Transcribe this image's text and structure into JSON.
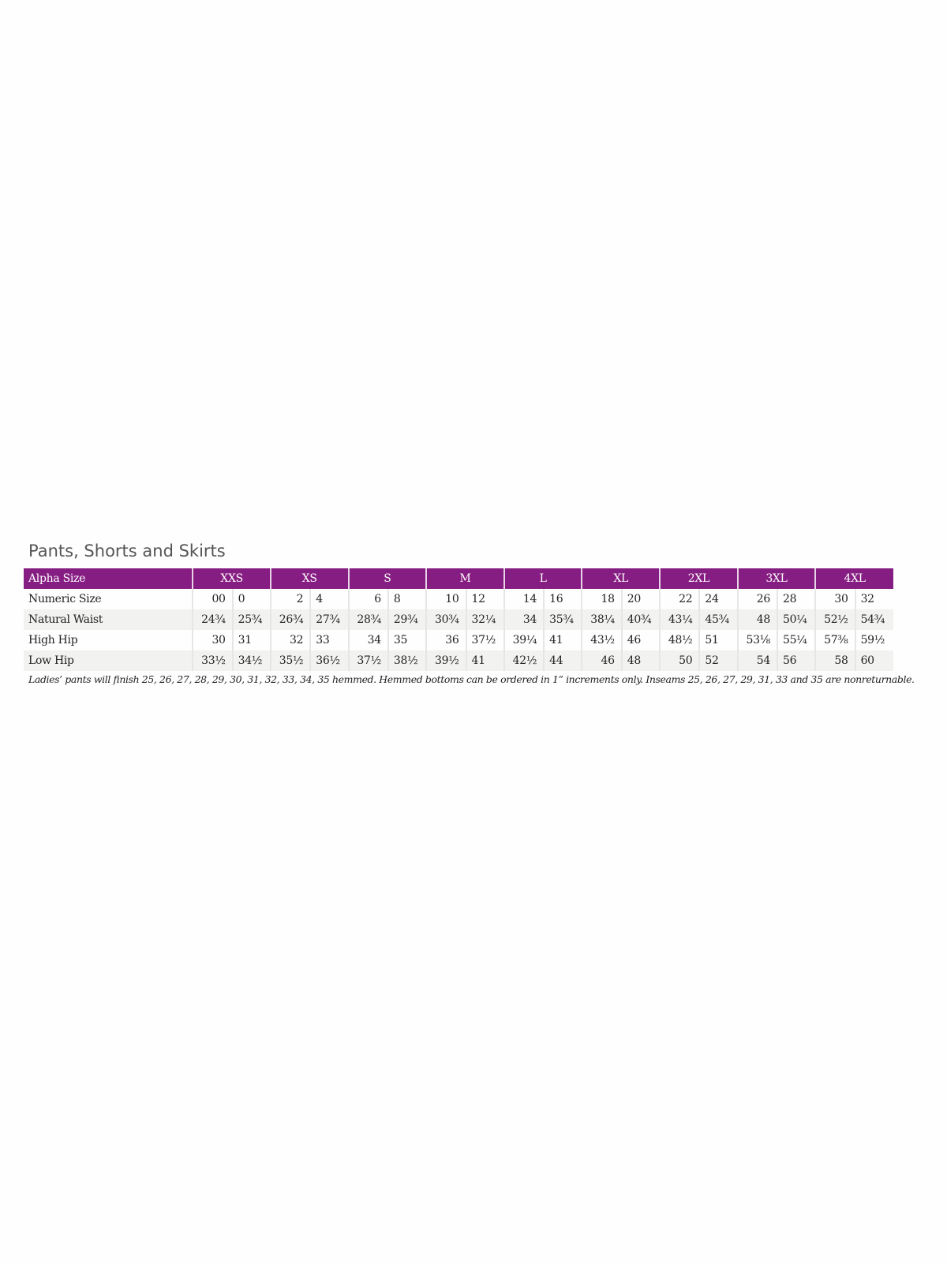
{
  "title": "Pants, Shorts and Skirts",
  "colors": {
    "header_bg": "#861d82",
    "alt_row_bg": "#f2f2f1"
  },
  "table": {
    "header_label": "Alpha Size",
    "sizes": [
      "XXS",
      "XS",
      "S",
      "M",
      "L",
      "XL",
      "2XL",
      "3XL",
      "4XL"
    ],
    "rows": [
      {
        "label": "Numeric Size",
        "values": [
          "00",
          "0",
          "2",
          "4",
          "6",
          "8",
          "10",
          "12",
          "14",
          "16",
          "18",
          "20",
          "22",
          "24",
          "26",
          "28",
          "30",
          "32"
        ]
      },
      {
        "label": "Natural Waist",
        "values": [
          "24¾",
          "25¾",
          "26¾",
          "27¾",
          "28¾",
          "29¾",
          "30¾",
          "32¼",
          "34",
          "35¾",
          "38¼",
          "40¾",
          "43¼",
          "45¾",
          "48",
          "50¼",
          "52½",
          "54¾"
        ]
      },
      {
        "label": "High Hip",
        "values": [
          "30",
          "31",
          "32",
          "33",
          "34",
          "35",
          "36",
          "37½",
          "39¼",
          "41",
          "43½",
          "46",
          "48½",
          "51",
          "53⅛",
          "55¼",
          "57⅜",
          "59½"
        ]
      },
      {
        "label": "Low Hip",
        "values": [
          "33½",
          "34½",
          "35½",
          "36½",
          "37½",
          "38½",
          "39½",
          "41",
          "42½",
          "44",
          "46",
          "48",
          "50",
          "52",
          "54",
          "56",
          "58",
          "60"
        ]
      }
    ]
  },
  "note": "Ladies’ pants will finish 25, 26, 27, 28, 29, 30, 31, 32, 33, 34, 35 hemmed. Hemmed bottoms can be ordered in 1” increments only. Inseams 25, 26, 27, 29, 31, 33 and 35 are nonreturnable."
}
